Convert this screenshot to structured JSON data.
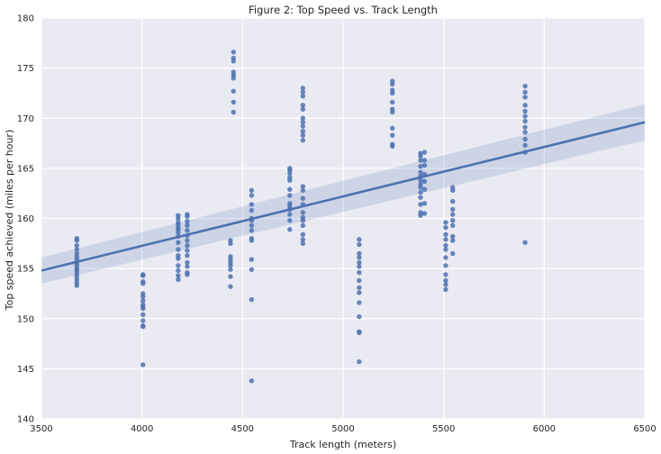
{
  "chart_data": {
    "type": "scatter",
    "title": "Figure 2: Top Speed vs. Track Length",
    "xlabel": "Track length (meters)",
    "ylabel": "Top speed achieved (miles per hour)",
    "xlim": [
      3500,
      6500
    ],
    "ylim": [
      140,
      180
    ],
    "x_ticks": [
      "3500",
      "4000",
      "4500",
      "5000",
      "5500",
      "6000",
      "6500"
    ],
    "y_ticks": [
      "140",
      "145",
      "150",
      "155",
      "160",
      "165",
      "170",
      "175",
      "180"
    ],
    "grid": true,
    "colors": {
      "background": "#EAEAF2",
      "grid": "#FFFFFF",
      "points": "#4C72B0",
      "line": "#4C72B0",
      "band": "#4C72B0"
    },
    "regression": {
      "x": [
        3500,
        6500
      ],
      "y": [
        154.8,
        169.6
      ],
      "ci_lower": [
        153.5,
        167.8
      ],
      "ci_upper": [
        156.1,
        171.4
      ]
    },
    "points": [
      [
        3676,
        158.0
      ],
      [
        3676,
        157.8
      ],
      [
        3676,
        157.3
      ],
      [
        3676,
        156.9
      ],
      [
        3676,
        156.5
      ],
      [
        3676,
        156.2
      ],
      [
        3676,
        155.9
      ],
      [
        3676,
        155.6
      ],
      [
        3676,
        155.3
      ],
      [
        3676,
        155.0
      ],
      [
        3676,
        154.8
      ],
      [
        3676,
        154.5
      ],
      [
        3676,
        154.2
      ],
      [
        3676,
        153.9
      ],
      [
        3676,
        153.6
      ],
      [
        3676,
        153.3
      ],
      [
        4005,
        154.4
      ],
      [
        4005,
        154.3
      ],
      [
        4005,
        153.7
      ],
      [
        4005,
        153.5
      ],
      [
        4005,
        152.5
      ],
      [
        4005,
        152.2
      ],
      [
        4005,
        151.8
      ],
      [
        4005,
        151.4
      ],
      [
        4005,
        151.2
      ],
      [
        4005,
        151.0
      ],
      [
        4005,
        150.4
      ],
      [
        4005,
        149.8
      ],
      [
        4005,
        149.3
      ],
      [
        4005,
        149.2
      ],
      [
        4005,
        145.4
      ],
      [
        4180,
        160.3
      ],
      [
        4180,
        160.0
      ],
      [
        4180,
        159.6
      ],
      [
        4180,
        159.4
      ],
      [
        4180,
        159.1
      ],
      [
        4180,
        158.9
      ],
      [
        4180,
        158.6
      ],
      [
        4180,
        158.2
      ],
      [
        4180,
        157.6
      ],
      [
        4180,
        156.9
      ],
      [
        4180,
        156.3
      ],
      [
        4180,
        156.0
      ],
      [
        4180,
        155.3
      ],
      [
        4180,
        154.8
      ],
      [
        4180,
        154.3
      ],
      [
        4180,
        153.9
      ],
      [
        4225,
        160.4
      ],
      [
        4225,
        160.2
      ],
      [
        4225,
        159.7
      ],
      [
        4225,
        159.3
      ],
      [
        4225,
        158.8
      ],
      [
        4225,
        158.3
      ],
      [
        4225,
        157.8
      ],
      [
        4225,
        157.3
      ],
      [
        4225,
        156.8
      ],
      [
        4225,
        156.3
      ],
      [
        4225,
        155.6
      ],
      [
        4225,
        155.2
      ],
      [
        4225,
        154.6
      ],
      [
        4225,
        154.4
      ],
      [
        4440,
        157.8
      ],
      [
        4440,
        157.5
      ],
      [
        4440,
        156.2
      ],
      [
        4440,
        155.9
      ],
      [
        4440,
        155.6
      ],
      [
        4440,
        155.3
      ],
      [
        4440,
        154.9
      ],
      [
        4440,
        154.2
      ],
      [
        4440,
        153.2
      ],
      [
        4455,
        176.6
      ],
      [
        4455,
        176.0
      ],
      [
        4455,
        175.7
      ],
      [
        4455,
        174.6
      ],
      [
        4455,
        174.3
      ],
      [
        4455,
        174.0
      ],
      [
        4455,
        172.7
      ],
      [
        4455,
        171.6
      ],
      [
        4455,
        170.6
      ],
      [
        4545,
        162.8
      ],
      [
        4545,
        162.3
      ],
      [
        4545,
        161.4
      ],
      [
        4545,
        160.8
      ],
      [
        4545,
        160.0
      ],
      [
        4545,
        159.8
      ],
      [
        4545,
        159.3
      ],
      [
        4545,
        158.8
      ],
      [
        4545,
        158.0
      ],
      [
        4545,
        157.8
      ],
      [
        4545,
        155.9
      ],
      [
        4545,
        154.9
      ],
      [
        4545,
        151.9
      ],
      [
        4545,
        143.8
      ],
      [
        4735,
        165.0
      ],
      [
        4735,
        164.8
      ],
      [
        4735,
        164.5
      ],
      [
        4735,
        164.1
      ],
      [
        4735,
        163.8
      ],
      [
        4735,
        162.9
      ],
      [
        4735,
        162.3
      ],
      [
        4735,
        161.5
      ],
      [
        4735,
        161.2
      ],
      [
        4735,
        160.9
      ],
      [
        4735,
        160.4
      ],
      [
        4735,
        159.8
      ],
      [
        4735,
        158.9
      ],
      [
        4800,
        173.0
      ],
      [
        4800,
        172.6
      ],
      [
        4800,
        172.2
      ],
      [
        4800,
        171.3
      ],
      [
        4800,
        170.9
      ],
      [
        4800,
        170.0
      ],
      [
        4800,
        169.6
      ],
      [
        4800,
        169.2
      ],
      [
        4800,
        168.7
      ],
      [
        4800,
        168.3
      ],
      [
        4800,
        167.8
      ],
      [
        4800,
        163.2
      ],
      [
        4800,
        162.8
      ],
      [
        4800,
        162.0
      ],
      [
        4800,
        161.4
      ],
      [
        4800,
        160.6
      ],
      [
        4800,
        160.1
      ],
      [
        4800,
        159.8
      ],
      [
        4800,
        159.3
      ],
      [
        4800,
        158.4
      ],
      [
        4800,
        157.9
      ],
      [
        4800,
        157.5
      ],
      [
        5080,
        157.9
      ],
      [
        5080,
        157.4
      ],
      [
        5080,
        156.5
      ],
      [
        5080,
        156.1
      ],
      [
        5080,
        155.6
      ],
      [
        5080,
        155.2
      ],
      [
        5080,
        154.6
      ],
      [
        5080,
        153.8
      ],
      [
        5080,
        153.1
      ],
      [
        5080,
        152.6
      ],
      [
        5080,
        151.6
      ],
      [
        5080,
        150.2
      ],
      [
        5080,
        148.7
      ],
      [
        5080,
        148.6
      ],
      [
        5080,
        145.7
      ],
      [
        5245,
        173.7
      ],
      [
        5245,
        173.4
      ],
      [
        5245,
        172.8
      ],
      [
        5245,
        172.5
      ],
      [
        5245,
        171.6
      ],
      [
        5245,
        170.9
      ],
      [
        5245,
        170.6
      ],
      [
        5245,
        169.0
      ],
      [
        5245,
        168.3
      ],
      [
        5245,
        167.4
      ],
      [
        5245,
        167.2
      ],
      [
        5385,
        166.5
      ],
      [
        5385,
        166.2
      ],
      [
        5385,
        165.8
      ],
      [
        5385,
        165.2
      ],
      [
        5385,
        164.6
      ],
      [
        5385,
        164.2
      ],
      [
        5385,
        163.8
      ],
      [
        5385,
        163.4
      ],
      [
        5385,
        163.1
      ],
      [
        5385,
        162.6
      ],
      [
        5385,
        162.1
      ],
      [
        5385,
        161.4
      ],
      [
        5385,
        160.6
      ],
      [
        5385,
        160.3
      ],
      [
        5405,
        166.6
      ],
      [
        5405,
        165.8
      ],
      [
        5405,
        165.3
      ],
      [
        5405,
        164.4
      ],
      [
        5405,
        163.7
      ],
      [
        5405,
        162.9
      ],
      [
        5405,
        161.5
      ],
      [
        5405,
        160.5
      ],
      [
        5510,
        159.6
      ],
      [
        5510,
        159.1
      ],
      [
        5510,
        158.4
      ],
      [
        5510,
        157.9
      ],
      [
        5510,
        157.3
      ],
      [
        5510,
        156.9
      ],
      [
        5510,
        156.1
      ],
      [
        5510,
        155.3
      ],
      [
        5510,
        154.4
      ],
      [
        5510,
        153.8
      ],
      [
        5510,
        153.4
      ],
      [
        5510,
        152.9
      ],
      [
        5545,
        163.1
      ],
      [
        5545,
        162.8
      ],
      [
        5545,
        161.7
      ],
      [
        5545,
        160.9
      ],
      [
        5545,
        160.4
      ],
      [
        5545,
        159.8
      ],
      [
        5545,
        159.3
      ],
      [
        5545,
        158.2
      ],
      [
        5545,
        157.8
      ],
      [
        5545,
        156.5
      ],
      [
        5905,
        173.2
      ],
      [
        5905,
        172.6
      ],
      [
        5905,
        172.1
      ],
      [
        5905,
        171.3
      ],
      [
        5905,
        170.7
      ],
      [
        5905,
        170.2
      ],
      [
        5905,
        169.7
      ],
      [
        5905,
        169.1
      ],
      [
        5905,
        168.6
      ],
      [
        5905,
        167.9
      ],
      [
        5905,
        167.3
      ],
      [
        5905,
        166.6
      ],
      [
        5905,
        157.6
      ]
    ]
  }
}
